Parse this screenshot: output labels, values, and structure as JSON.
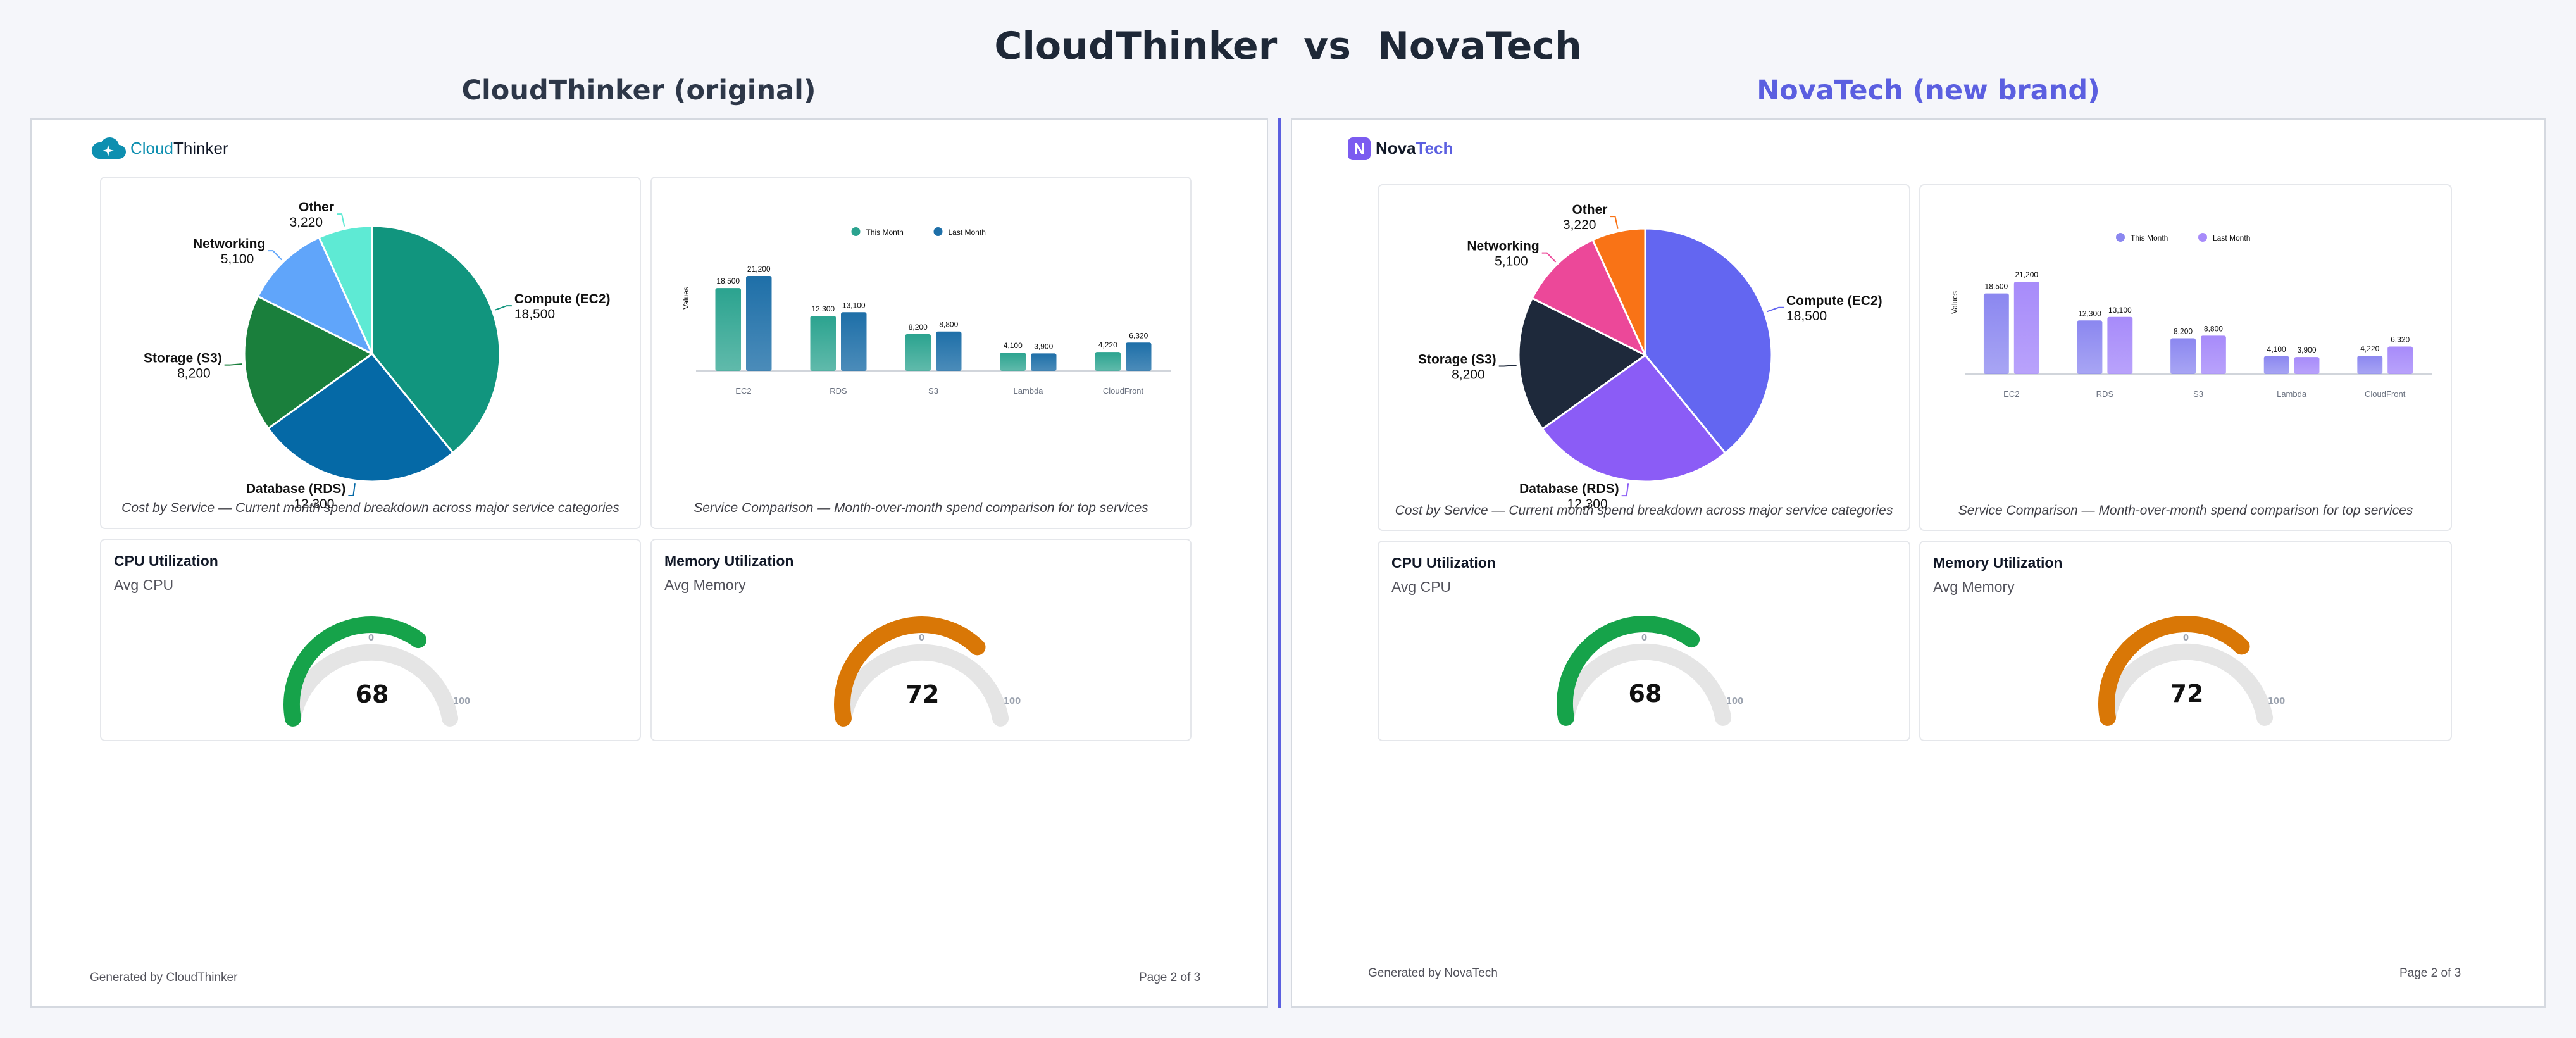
{
  "page": {
    "title": "CloudThinker  vs  NovaTech",
    "left_heading": "CloudThinker (original)",
    "right_heading": "NovaTech (new brand)",
    "left_heading_color": "#2d3748",
    "right_heading_color": "#5b5fe0",
    "divider_color": "#5b5fe0"
  },
  "left": {
    "logo": {
      "part1": "Cloud",
      "part2": "Thinker",
      "icon": "cloud-icon",
      "color1": "#0e8fb0",
      "color2": "#111827"
    },
    "pie_caption": "Cost by Service — Current month spend breakdown across major service categories",
    "bar_caption": "Service Comparison — Month-over-month spend comparison for top services",
    "pie_colors": [
      "#11957e",
      "#0569a6",
      "#1a7f3c",
      "#60a5fa",
      "#5eead4"
    ],
    "bar_colors": {
      "this_month": "#2ba38f",
      "last_month": "#1e6fa8"
    },
    "cpu": {
      "title": "CPU Utilization",
      "subtitle": "Avg CPU",
      "value": 68,
      "color": "#16a34a"
    },
    "memory": {
      "title": "Memory Utilization",
      "subtitle": "Avg Memory",
      "value": 72,
      "color": "#d97706"
    },
    "footer_left": "Generated by CloudThinker",
    "footer_right": "Page 2 of 3"
  },
  "right": {
    "logo": {
      "part1": "Nova",
      "part2": "Tech",
      "icon": "n-letter-icon",
      "color1": "#111827",
      "color2": "#5b5fe0"
    },
    "pie_caption": "Cost by Service — Current month spend breakdown across major service categories",
    "bar_caption": "Service Comparison — Month-over-month spend comparison for top services",
    "pie_colors": [
      "#6366f1",
      "#8b5cf6",
      "#1e293b",
      "#ec4899",
      "#f97316"
    ],
    "bar_colors": {
      "this_month": "#8b87f0",
      "last_month": "#a78bfa"
    },
    "cpu": {
      "title": "CPU Utilization",
      "subtitle": "Avg CPU",
      "value": 68,
      "color": "#16a34a"
    },
    "memory": {
      "title": "Memory Utilization",
      "subtitle": "Avg Memory",
      "value": 72,
      "color": "#d97706"
    },
    "footer_left": "Generated by NovaTech",
    "footer_right": "Page 2 of 3"
  },
  "gauge_ticks": {
    "min": "0",
    "max": "100"
  },
  "chart_data": [
    {
      "type": "pie",
      "title": "Cost by Service",
      "categories": [
        "Compute (EC2)",
        "Database (RDS)",
        "Storage (S3)",
        "Networking",
        "Other"
      ],
      "values": [
        18500,
        12300,
        8200,
        5100,
        3220
      ],
      "value_labels": [
        "18,500",
        "12,300",
        "8,200",
        "5,100",
        "3,220"
      ]
    },
    {
      "type": "bar",
      "title": "Service Comparison",
      "categories": [
        "EC2",
        "RDS",
        "S3",
        "Lambda",
        "CloudFront"
      ],
      "ylabel": "Values",
      "legend": "top-center",
      "series": [
        {
          "name": "This Month",
          "values": [
            18500,
            12300,
            8200,
            4100,
            4220
          ],
          "labels": [
            "18,500",
            "12,300",
            "8,200",
            "4,100",
            "4,220"
          ]
        },
        {
          "name": "Last Month",
          "values": [
            21200,
            13100,
            8800,
            3900,
            6320
          ],
          "labels": [
            "21,200",
            "13,100",
            "8,800",
            "3,900",
            "6,320"
          ]
        }
      ]
    }
  ]
}
